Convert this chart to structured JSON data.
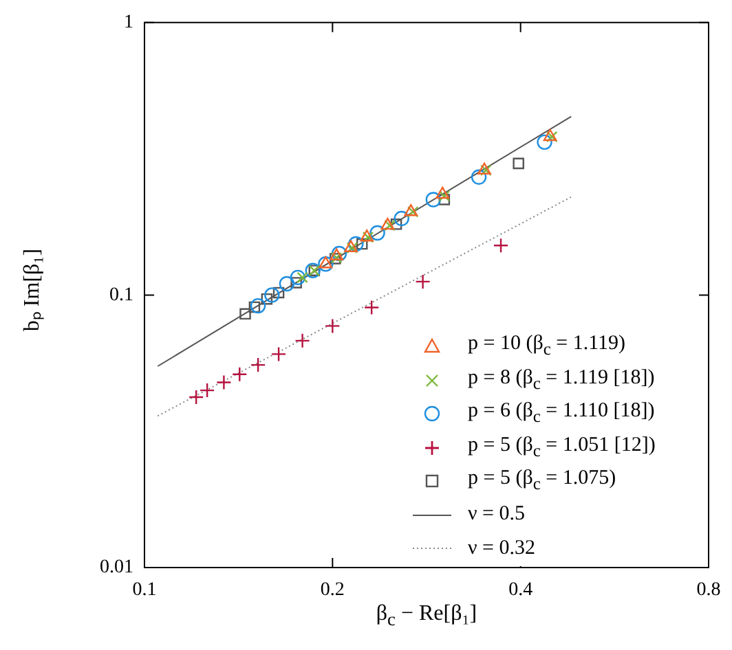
{
  "chart_data": {
    "type": "scatter",
    "xlabel": "β$_{c}$ − Re[β₁]",
    "ylabel": "bₚ Im[β₁]",
    "log": "xy",
    "grid": false,
    "legend": "bottom right",
    "xlim": [
      0.1,
      0.8
    ],
    "xticks": [
      0.1,
      0.2,
      0.4,
      0.8
    ],
    "ylim": [
      0.01,
      1
    ],
    "yticks": [
      0.01,
      0.1,
      1
    ],
    "series": [
      {
        "name": "p = 10 (β$_{c}$ = 1.119)",
        "color": "#f0642a",
        "marker": "triangle",
        "x": [
          0.195,
          0.203,
          0.214,
          0.227,
          0.245,
          0.267,
          0.3,
          0.35,
          0.446
        ],
        "values": [
          0.13,
          0.139,
          0.149,
          0.163,
          0.18,
          0.202,
          0.234,
          0.287,
          0.381
        ]
      },
      {
        "name": "p = 8 (β$_{c}$ = 1.119 [18])",
        "color": "#7cb83a",
        "marker": "x",
        "x": [
          0.179,
          0.187,
          0.203,
          0.215,
          0.228,
          0.247,
          0.269,
          0.302,
          0.352,
          0.449
        ],
        "values": [
          0.116,
          0.123,
          0.137,
          0.149,
          0.163,
          0.18,
          0.202,
          0.231,
          0.287,
          0.381
        ]
      },
      {
        "name": "p = 6 (β$_{c}$ = 1.110 [18])",
        "color": "#1f8fe0",
        "marker": "circle",
        "x": [
          0.152,
          0.16,
          0.169,
          0.176,
          0.186,
          0.195,
          0.205,
          0.218,
          0.236,
          0.258,
          0.29,
          0.343,
          0.437
        ],
        "values": [
          0.0913,
          0.1,
          0.11,
          0.116,
          0.123,
          0.13,
          0.142,
          0.154,
          0.169,
          0.191,
          0.224,
          0.271,
          0.364
        ]
      },
      {
        "name": "p = 5 (β$_{c}$ = 1.051 [12])",
        "color": "#b5123e",
        "marker": "cross",
        "x": [
          0.121,
          0.126,
          0.134,
          0.142,
          0.152,
          0.164,
          0.179,
          0.2,
          0.231,
          0.279,
          0.372
        ],
        "values": [
          0.0422,
          0.0447,
          0.0478,
          0.0512,
          0.0554,
          0.0607,
          0.068,
          0.077,
          0.09,
          0.112,
          0.152
        ]
      },
      {
        "name": "p = 5 (β$_{c}$ = 1.075)",
        "color": "#555555",
        "marker": "square",
        "x": [
          0.145,
          0.15,
          0.157,
          0.164,
          0.175,
          0.187,
          0.202,
          0.223,
          0.253,
          0.302,
          0.397
        ],
        "values": [
          0.0853,
          0.0903,
          0.0967,
          0.102,
          0.111,
          0.123,
          0.136,
          0.154,
          0.182,
          0.224,
          0.304
        ]
      },
      {
        "name": "ν = 0.5",
        "type": "line",
        "color": "#555555",
        "marker": "none",
        "line_style": "solid",
        "x": [
          0.105,
          0.482
        ],
        "values": [
          0.0548,
          0.452
        ]
      },
      {
        "name": "ν = 0.32",
        "type": "line",
        "color": "#888888",
        "marker": "none",
        "line_style": "dotted",
        "x": [
          0.105,
          0.482
        ],
        "values": [
          0.036,
          0.229
        ]
      }
    ]
  }
}
